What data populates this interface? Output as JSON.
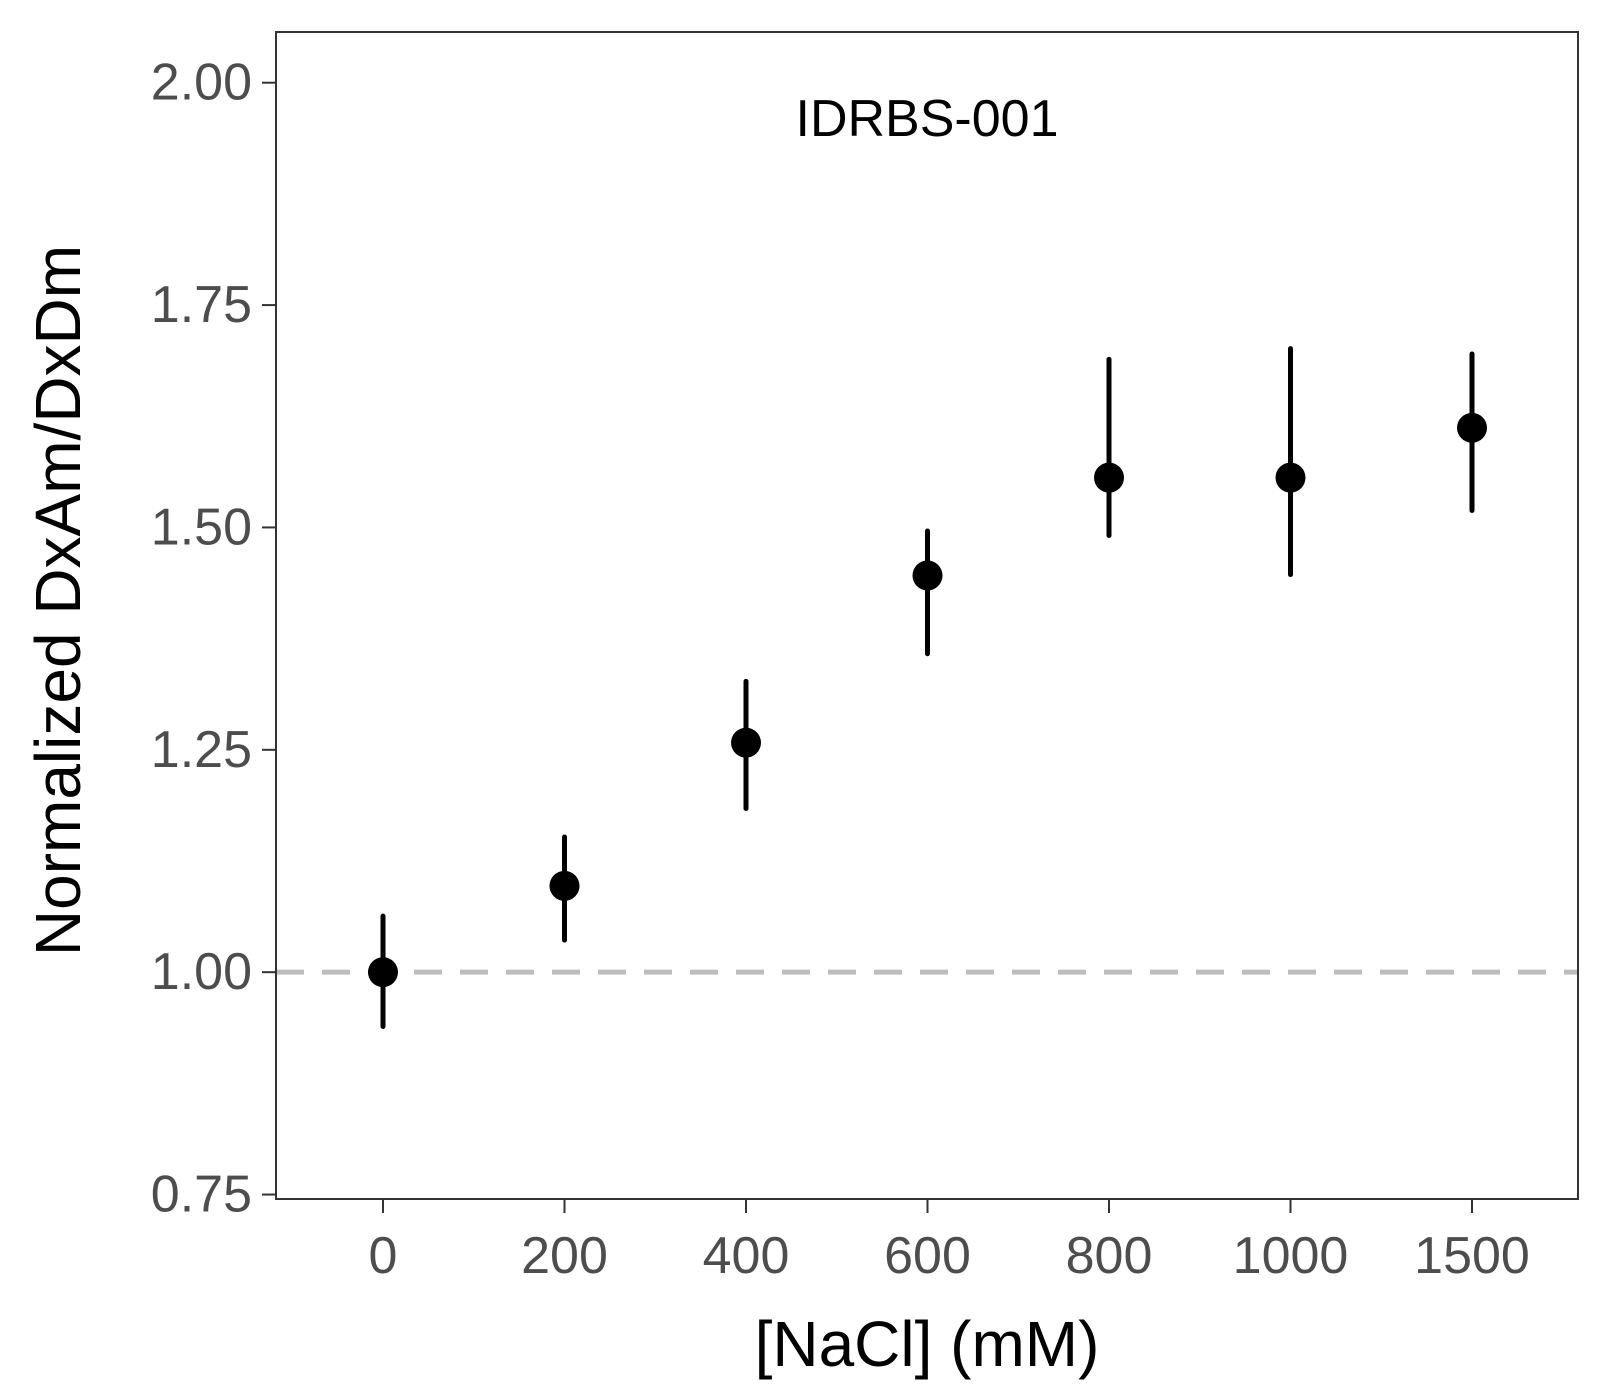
{
  "chart_data": {
    "type": "scatter",
    "annotation": "IDRBS-001",
    "xlabel": "[NaCl] (mM)",
    "ylabel": "Normalized DxAm/DxDm",
    "categories": [
      "0",
      "200",
      "400",
      "600",
      "800",
      "1000",
      "1500"
    ],
    "y_ticks": [
      "0.75",
      "1.00",
      "1.25",
      "1.50",
      "1.75",
      "2.00"
    ],
    "y_tick_values": [
      0.75,
      1.0,
      1.25,
      1.5,
      1.75,
      2.0
    ],
    "ylim": [
      0.745,
      2.057
    ],
    "reference_line": {
      "y": 1.0,
      "style": "dashed",
      "color": "#bdbdbd"
    },
    "points": [
      {
        "x": "0",
        "y": 1.0,
        "ymin": 0.939,
        "ymax": 1.063
      },
      {
        "x": "200",
        "y": 1.097,
        "ymin": 1.036,
        "ymax": 1.152
      },
      {
        "x": "400",
        "y": 1.258,
        "ymin": 1.184,
        "ymax": 1.327
      },
      {
        "x": "600",
        "y": 1.446,
        "ymin": 1.358,
        "ymax": 1.496
      },
      {
        "x": "800",
        "y": 1.556,
        "ymin": 1.491,
        "ymax": 1.689
      },
      {
        "x": "1000",
        "y": 1.556,
        "ymin": 1.447,
        "ymax": 1.701
      },
      {
        "x": "1500",
        "y": 1.612,
        "ymin": 1.519,
        "ymax": 1.695
      }
    ],
    "grid": false,
    "colors": {
      "points": "#000000",
      "axis": "#333333",
      "tick_text": "#4d4d4d"
    }
  }
}
